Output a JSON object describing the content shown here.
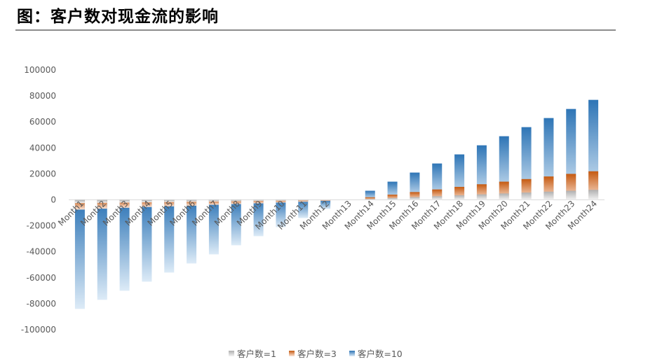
{
  "page": {
    "title": "图：客户数对现金流的影响"
  },
  "colors": {
    "series_dark": [
      "#b0b0b0",
      "#c55a11",
      "#2e75b6"
    ],
    "series_light": [
      "#f2f2f2",
      "#fce4d6",
      "#ddebf7"
    ],
    "axis_text": "#595959",
    "zero_line": "#d9d9d9"
  },
  "chart_data": {
    "type": "bar",
    "stacking": "overlapping",
    "categories": [
      "Month1",
      "Month2",
      "Month3",
      "Month4",
      "Month5",
      "Month6",
      "Month7",
      "Month8",
      "Month9",
      "Month10",
      "Month11",
      "Month12",
      "Month13",
      "Month14",
      "Month15",
      "Month16",
      "Month17",
      "Month18",
      "Month19",
      "Month20",
      "Month21",
      "Month22",
      "Month23",
      "Month24"
    ],
    "series": [
      {
        "name": "客户数=1",
        "values": [
          -2500,
          -2300,
          -2100,
          -1900,
          -1700,
          -1500,
          -1300,
          -1100,
          -900,
          -700,
          -500,
          -250,
          0,
          700,
          1400,
          2100,
          2800,
          3500,
          4200,
          4900,
          5600,
          6300,
          7000,
          7700
        ]
      },
      {
        "name": "客户数=3",
        "values": [
          -7500,
          -6800,
          -6100,
          -5500,
          -5000,
          -4500,
          -3800,
          -3300,
          -2700,
          -2100,
          -1500,
          -750,
          0,
          2000,
          4000,
          6000,
          8000,
          10000,
          12000,
          14000,
          16000,
          18000,
          20000,
          22000
        ]
      },
      {
        "name": "客户数=10",
        "values": [
          -84000,
          -77000,
          -70000,
          -63000,
          -56000,
          -49000,
          -42000,
          -35000,
          -28000,
          -21000,
          -14000,
          -7000,
          0,
          7000,
          14000,
          21000,
          28000,
          35000,
          42000,
          49000,
          56000,
          63000,
          70000,
          77000
        ]
      }
    ],
    "y_ticks": [
      "100000",
      "80000",
      "60000",
      "40000",
      "20000",
      "0",
      "-20000",
      "-40000",
      "-60000",
      "-80000",
      "-100000"
    ],
    "ylim": [
      -100000,
      100000
    ],
    "grid": false,
    "legend_position": "bottom"
  }
}
